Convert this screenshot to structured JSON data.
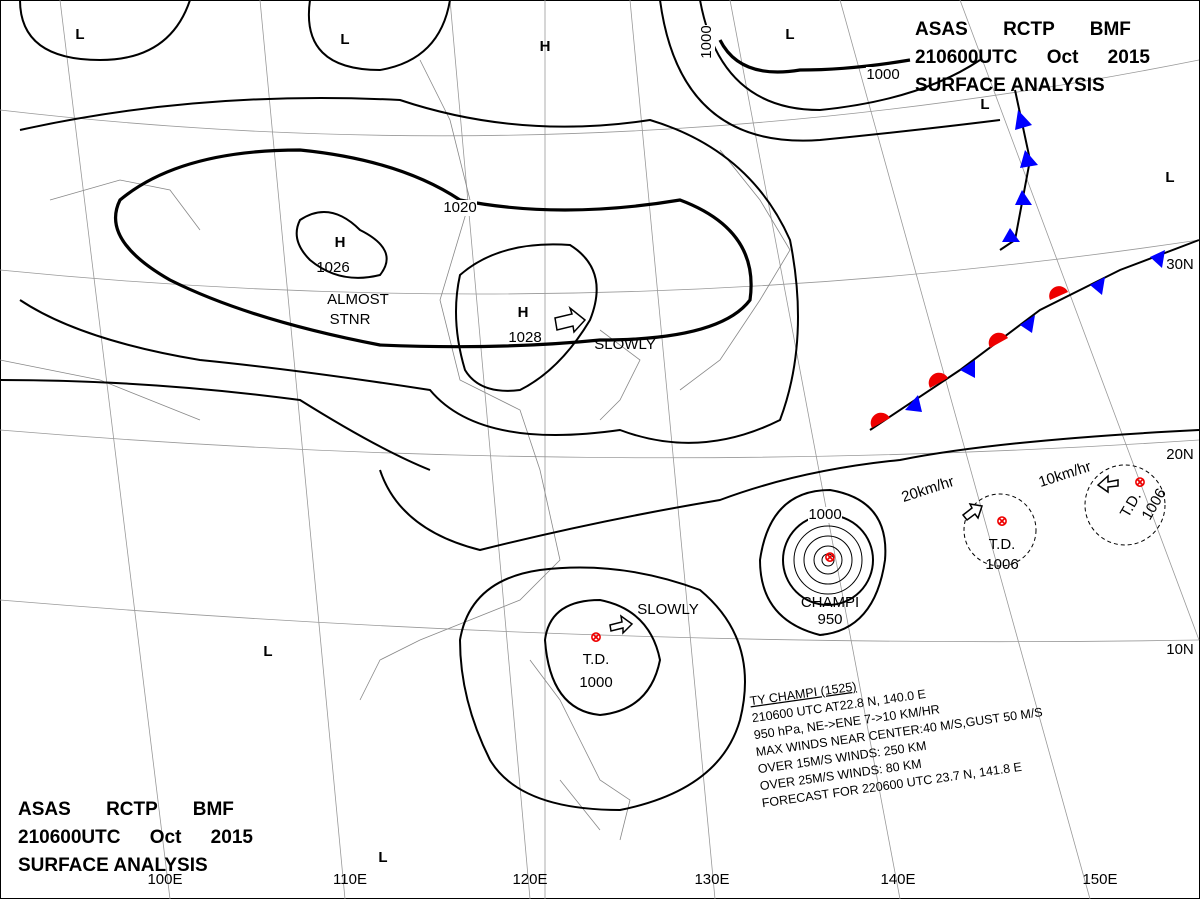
{
  "header_top": [
    "ASAS RCTP BMF",
    "210600UTC Oct 2015",
    "SURFACE ANALYSIS"
  ],
  "header_bottom": [
    "ASAS RCTP BMF",
    "210600UTC Oct 2015",
    "SURFACE ANALYSIS"
  ],
  "highs": [
    {
      "label": "H",
      "value": 1026
    },
    {
      "label": "H"
    },
    {
      "label": "H",
      "value": 1028
    }
  ],
  "lows": [
    "L",
    "L",
    "L",
    "L",
    "L",
    "L",
    "L"
  ],
  "isobar_labels": [
    1020,
    1000,
    1000,
    1000
  ],
  "annotations": [
    "ALMOST",
    "STNR",
    "SLOWLY",
    "SLOWLY",
    "20km/hr",
    "10km/hr"
  ],
  "storms": [
    {
      "name": "T.D.",
      "pressure": 1000
    },
    {
      "name": "T.D.",
      "pressure": 1006
    },
    {
      "name": "T.D.",
      "pressure": 1006
    },
    {
      "name": "CHAMPI",
      "pressure": 950
    }
  ],
  "typhoon_info": [
    "TY CHAMPI (1525)",
    "210600 UTC AT22.8 N, 140.0 E",
    "950 hPa, NE->ENE 7->10 KM/HR",
    "MAX WINDS NEAR CENTER:40 M/S,GUST 50 M/S",
    "OVER 15M/S WINDS: 250 KM",
    "OVER 25M/S WINDS: 80 KM",
    "FORECAST FOR 220600 UTC 23.7 N, 141.8 E"
  ],
  "longitude_labels": [
    "100E",
    "110E",
    "120E",
    "130E",
    "140E",
    "150E"
  ],
  "latitude_labels": [
    "30N",
    "20N",
    "10N"
  ]
}
